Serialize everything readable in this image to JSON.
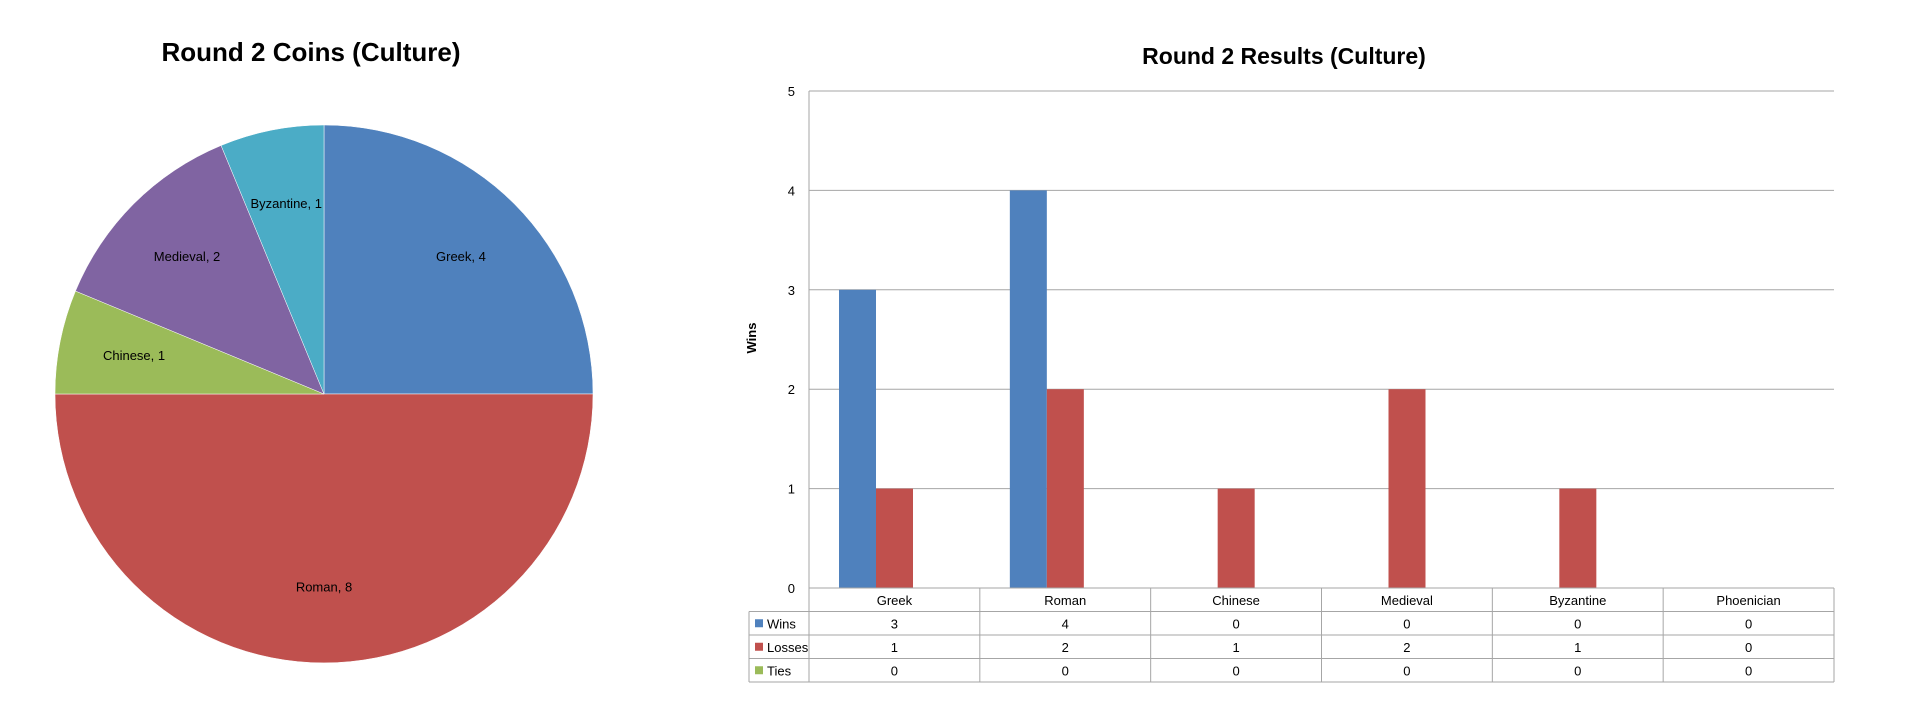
{
  "chart_data": [
    {
      "type": "pie",
      "title": "Round 2 Coins (Culture)",
      "slices": [
        {
          "label": "Greek",
          "value": 4,
          "color": "#4F81BD"
        },
        {
          "label": "Roman",
          "value": 8,
          "color": "#C0504D"
        },
        {
          "label": "Chinese",
          "value": 1,
          "color": "#9BBB59"
        },
        {
          "label": "Medieval",
          "value": 2,
          "color": "#8064A2"
        },
        {
          "label": "Byzantine",
          "value": 1,
          "color": "#4BACC6"
        }
      ]
    },
    {
      "type": "bar",
      "title": "Round 2 Results (Culture)",
      "ylabel": "Wins",
      "ylim": [
        0,
        5
      ],
      "yticks": [
        0,
        1,
        2,
        3,
        4,
        5
      ],
      "grid": true,
      "categories": [
        "Greek",
        "Roman",
        "Chinese",
        "Medieval",
        "Byzantine",
        "Phoenician"
      ],
      "series": [
        {
          "name": "Wins",
          "values": [
            3,
            4,
            0,
            0,
            0,
            0
          ],
          "color": "#4F81BD"
        },
        {
          "name": "Losses",
          "values": [
            1,
            2,
            1,
            2,
            1,
            0
          ],
          "color": "#C0504D"
        },
        {
          "name": "Ties",
          "values": [
            0,
            0,
            0,
            0,
            0,
            0
          ],
          "color": "#9BBB59"
        }
      ],
      "legend": "data-table-below"
    }
  ]
}
